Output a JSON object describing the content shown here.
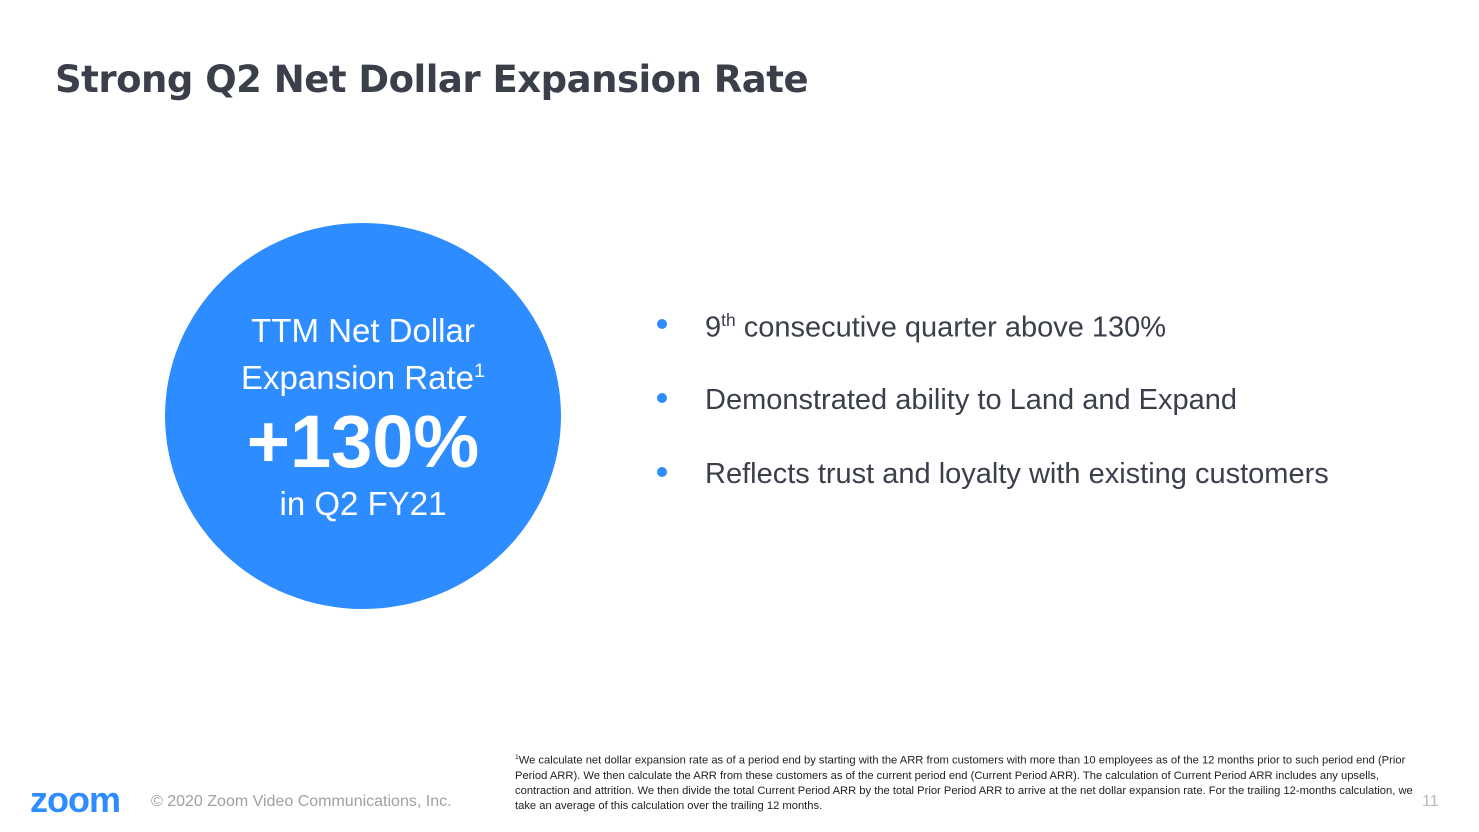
{
  "title": "Strong Q2 Net Dollar Expansion Rate",
  "circle": {
    "line1": "TTM Net Dollar",
    "line2": "Expansion Rate",
    "sup": "1",
    "value": "+130%",
    "period": "in Q2 FY21"
  },
  "bullets": [
    {
      "pre": "9",
      "sup": "th",
      "text": " consecutive quarter above 130%"
    },
    {
      "text": "Demonstrated ability to Land and Expand"
    },
    {
      "text": "Reflects trust and loyalty with existing customers"
    }
  ],
  "footer": {
    "logo": "zoom",
    "copyright": "© 2020 Zoom Video Communications, Inc.",
    "footnote_mark": "1",
    "footnote": "We calculate net dollar expansion rate as of a period end by starting with the ARR from customers with more than 10 employees as of the 12 months prior to such period end (Prior Period ARR). We then calculate the ARR from these customers as of the current period end (Current Period ARR). The calculation of Current Period ARR includes any upsells, contraction and attrition. We then divide the total Current Period ARR by the total Prior Period ARR to arrive at the net dollar expansion rate. For the trailing 12-months calculation, we take an average of this calculation over the trailing 12 months.",
    "page": "11"
  }
}
